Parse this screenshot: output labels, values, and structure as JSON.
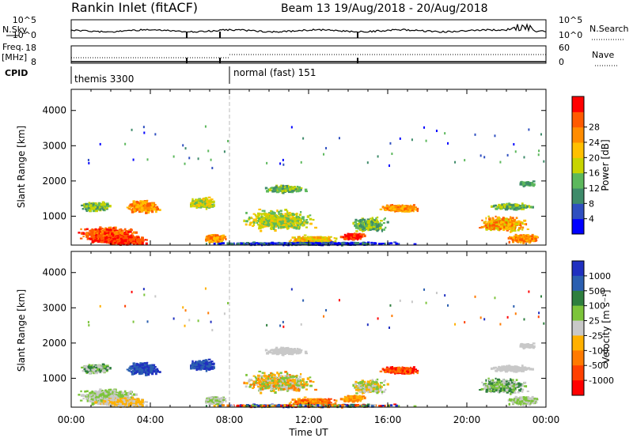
{
  "header": {
    "station": "Rankin Inlet (fitACF)",
    "beam_range": "Beam 13  19/Aug/2018 - 20/Aug/2018"
  },
  "colors": {
    "power": [
      "#0000ff",
      "#2f4fc0",
      "#3e8b6a",
      "#5cb85c",
      "#c8d400",
      "#ffc000",
      "#ff8c00",
      "#ff5a00",
      "#ff0000"
    ],
    "velocity": [
      "#2030c0",
      "#2b5fb0",
      "#2e7f3e",
      "#7cc43a",
      "#c8c8c8",
      "#ffb000",
      "#ff7a00",
      "#ff4000",
      "#ff0000"
    ]
  },
  "chart_data": [
    {
      "type": "line",
      "name": "nsky_nsearch_panel",
      "left_label": "N.Sky",
      "left_ticks": [
        "10^5",
        "10^0"
      ],
      "right_label": "N.Search",
      "right_ticks": [
        "10^5",
        "10^0"
      ]
    },
    {
      "type": "line",
      "name": "freq_nave_panel",
      "left_label_1": "Freq.",
      "left_label_2": "[MHz]",
      "left_ticks": [
        "18",
        "8"
      ],
      "right_label": "Nave",
      "right_ticks": [
        "60",
        "0"
      ]
    },
    {
      "type": "table",
      "name": "cpid_panel",
      "label": "CPID",
      "segments": [
        {
          "label": "themis 3300",
          "start_hour": 0
        },
        {
          "label": "normal (fast) 151",
          "start_hour": 8
        }
      ]
    },
    {
      "type": "heatmap",
      "name": "power_panel",
      "ylabel": "Slant Range [km]",
      "yticks": [
        1000,
        2000,
        3000,
        4000
      ],
      "ylim": [
        180,
        4600
      ],
      "xlim": [
        0,
        24
      ],
      "colorbar_label": "Power [dB]",
      "colorbar_ticks": [
        "4",
        "8",
        "12",
        "16",
        "20",
        "24",
        "28"
      ]
    },
    {
      "type": "heatmap",
      "name": "velocity_panel",
      "ylabel": "Slant Range [km]",
      "yticks": [
        1000,
        2000,
        3000,
        4000
      ],
      "ylim": [
        180,
        4600
      ],
      "xlim": [
        0,
        24
      ],
      "xticks": [
        "00:00",
        "04:00",
        "08:00",
        "12:00",
        "16:00",
        "20:00",
        "00:00"
      ],
      "xlabel": "Time UT",
      "colorbar_label": "Velocity [m s⁻¹]",
      "colorbar_ticks": [
        "1000",
        "500",
        "100",
        "25",
        "-25",
        "-100",
        "-500",
        "-1000"
      ]
    }
  ]
}
